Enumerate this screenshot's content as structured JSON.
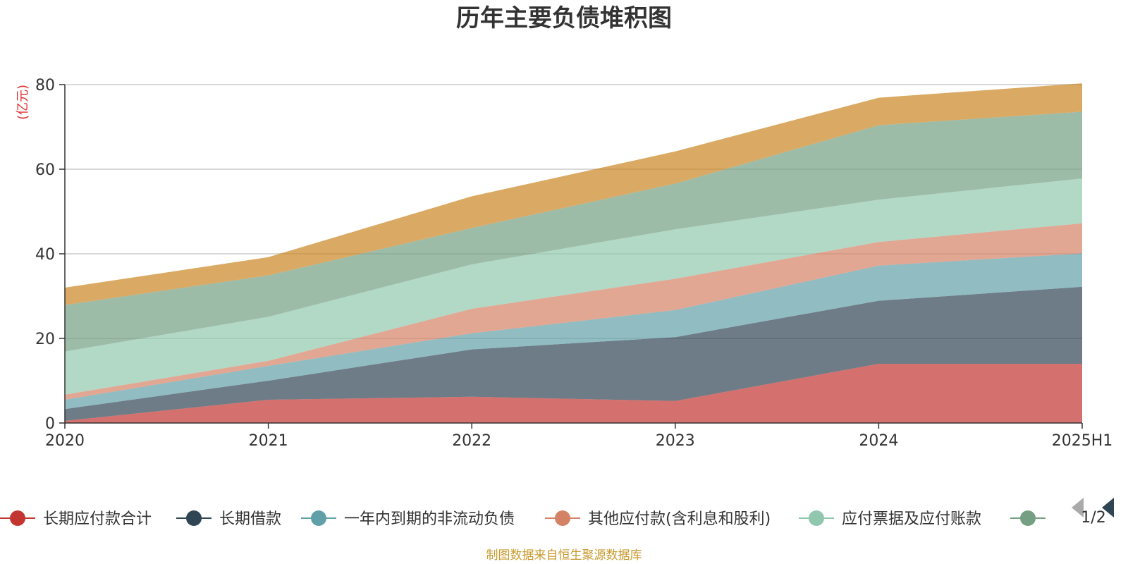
{
  "chart_data": {
    "type": "area",
    "stacked": true,
    "title": "历年主要负债堆积图",
    "unit_label": "(亿元)",
    "x": [
      "2020",
      "2021",
      "2022",
      "2023",
      "2024",
      "2025H1"
    ],
    "ylim": [
      0,
      80
    ],
    "yticks": [
      0,
      20,
      40,
      60,
      80
    ],
    "grid": true,
    "series": [
      {
        "name": "长期应付款合计",
        "color": "#c23531",
        "values": [
          0.5,
          5.5,
          6.2,
          5.2,
          14.0,
          14.0
        ]
      },
      {
        "name": "长期借款",
        "color": "#2f4554",
        "values": [
          2.8,
          4.5,
          11.2,
          15.1,
          14.9,
          18.2
        ]
      },
      {
        "name": "一年内到期的非流动负债",
        "color": "#61a0a8",
        "values": [
          2.2,
          3.5,
          3.8,
          6.4,
          8.3,
          7.9
        ]
      },
      {
        "name": "其他应付款(含利息和股利)",
        "color": "#d48265",
        "values": [
          1.2,
          1.2,
          5.8,
          7.4,
          5.6,
          7.1
        ]
      },
      {
        "name": "应付票据及应付账款",
        "color": "#91c7ae",
        "values": [
          10.2,
          10.4,
          10.5,
          11.7,
          10.0,
          10.6
        ]
      },
      {
        "name": "",
        "color": "#749f83",
        "values": [
          11.0,
          9.8,
          8.6,
          10.8,
          17.6,
          15.8
        ]
      },
      {
        "name": "",
        "color": "#ca8622",
        "values": [
          4.1,
          4.3,
          7.5,
          7.6,
          6.5,
          6.7
        ]
      }
    ]
  },
  "legend": {
    "page_indicator": "1/2",
    "prev_icon": "triangle-left-icon",
    "next_icon": "triangle-right-icon"
  },
  "source_note": "制图数据来自恒生聚源数据库"
}
